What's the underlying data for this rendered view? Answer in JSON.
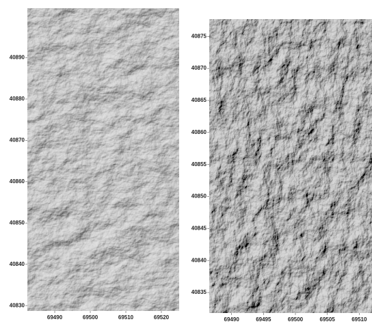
{
  "chart_data": [
    {
      "type": "image",
      "xlim": [
        69482.3,
        69525
      ],
      "xticks": [
        69490,
        69500,
        69510,
        69520
      ],
      "ylim": [
        40828.7,
        40902
      ],
      "yticks": [
        40830,
        40840,
        40850,
        40860,
        40870,
        40880,
        40890
      ]
    },
    {
      "type": "image",
      "xlim": [
        69486.5,
        69512
      ],
      "xticks": [
        69490,
        69495,
        69500,
        69505,
        69510
      ],
      "ylim": [
        40831.8,
        40877.7
      ],
      "yticks": [
        40835,
        40840,
        40845,
        40850,
        40855,
        40860,
        40865,
        40870,
        40875
      ]
    }
  ]
}
